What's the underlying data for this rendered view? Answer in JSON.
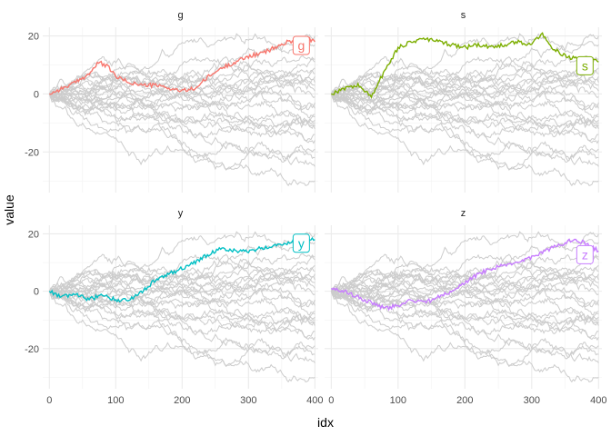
{
  "chart_data": {
    "type": "line",
    "layout": "facet_wrap 2x2, shared axes",
    "xlabel": "idx",
    "ylabel": "value",
    "xlim": [
      -10,
      405
    ],
    "ylim": [
      -34,
      23
    ],
    "x_ticks": [
      0,
      100,
      200,
      300,
      400
    ],
    "x_tick_labels": [
      "0",
      "100",
      "200",
      "300",
      "400"
    ],
    "y_ticks": [
      -20,
      0,
      20
    ],
    "y_tick_labels": [
      "-20",
      "0",
      "20"
    ],
    "grid": true,
    "legend": "none",
    "background_series_color": "#cccccc",
    "background_series_count": 25,
    "background_series_note": "gray random-walk series shown in every panel",
    "background_series_final_values": [
      20,
      17,
      12,
      11,
      9,
      7,
      6,
      4,
      3,
      1,
      -1,
      -3,
      -5,
      -7,
      -8,
      -9,
      -10,
      -11,
      -12,
      -14,
      -16,
      -19,
      -22,
      -25,
      -30
    ],
    "panels": [
      {
        "facet": "g",
        "color": "#F8766D",
        "label": "g",
        "x": [
          0,
          20,
          40,
          60,
          75,
          90,
          100,
          120,
          140,
          160,
          180,
          200,
          220,
          240,
          260,
          280,
          300,
          320,
          340,
          360,
          380,
          390,
          400
        ],
        "y": [
          0,
          2,
          4,
          7,
          11,
          9,
          6,
          4,
          3,
          3,
          2,
          1,
          2,
          6,
          9,
          11,
          13,
          14,
          16,
          18,
          19,
          19,
          18
        ]
      },
      {
        "facet": "s",
        "color": "#7CAE00",
        "label": "s",
        "x": [
          0,
          20,
          40,
          60,
          80,
          100,
          120,
          140,
          160,
          180,
          200,
          220,
          240,
          260,
          280,
          300,
          315,
          330,
          350,
          370,
          390,
          400
        ],
        "y": [
          0,
          2,
          3,
          -1,
          8,
          16,
          18,
          19,
          18,
          17,
          16,
          17,
          16,
          17,
          18,
          17,
          21,
          16,
          13,
          12,
          12,
          11
        ]
      },
      {
        "facet": "y",
        "color": "#00BFC4",
        "label": "y",
        "x": [
          0,
          20,
          40,
          60,
          80,
          100,
          120,
          140,
          160,
          180,
          200,
          220,
          240,
          260,
          280,
          300,
          320,
          340,
          360,
          380,
          395,
          400
        ],
        "y": [
          0,
          -2,
          -1,
          -3,
          -1,
          -3,
          -3,
          0,
          4,
          6,
          8,
          10,
          13,
          15,
          14,
          14,
          15,
          16,
          17,
          19,
          18,
          18
        ]
      },
      {
        "facet": "z",
        "color": "#C77CFF",
        "label": "z",
        "x": [
          0,
          20,
          40,
          60,
          80,
          100,
          120,
          140,
          160,
          180,
          200,
          220,
          240,
          260,
          280,
          300,
          320,
          340,
          360,
          380,
          400
        ],
        "y": [
          1,
          0,
          -2,
          -4,
          -6,
          -5,
          -3,
          -4,
          -2,
          0,
          3,
          6,
          8,
          9,
          10,
          12,
          14,
          16,
          18,
          17,
          14
        ]
      }
    ]
  }
}
